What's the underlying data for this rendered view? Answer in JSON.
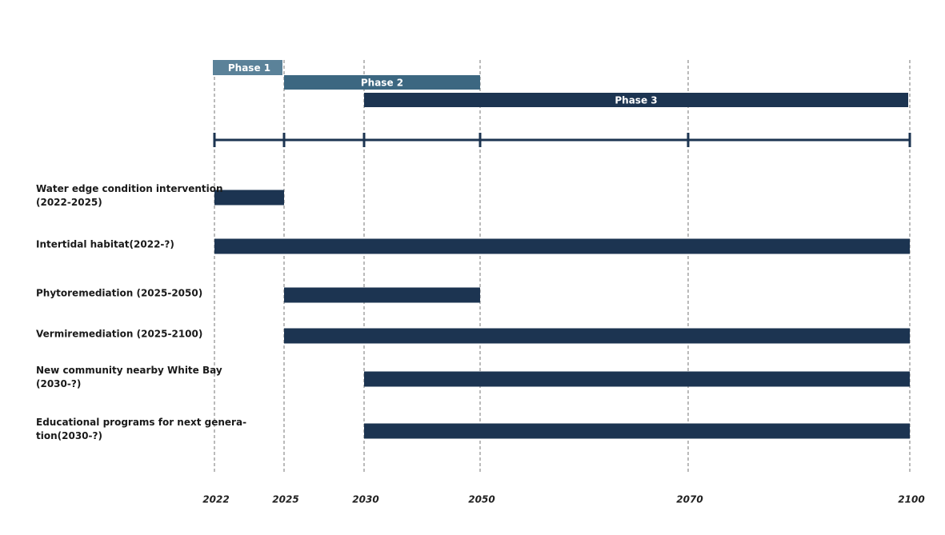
{
  "chart_data": {
    "type": "gantt",
    "phases": [
      {
        "name": "Phase 1",
        "start": 2022,
        "end": 2025,
        "color": "#5b8299"
      },
      {
        "name": "Phase 2",
        "start": 2025,
        "end": 2050,
        "color": "#3c6781"
      },
      {
        "name": "Phase 3",
        "start": 2030,
        "end": 2100,
        "color": "#1c3451"
      }
    ],
    "tasks": [
      {
        "label": [
          "Water edge condition intervention",
          "(2022-2025)"
        ],
        "start": 2022,
        "end": 2025
      },
      {
        "label": [
          "Intertidal habitat(2022-?)"
        ],
        "start": 2022,
        "end": null
      },
      {
        "label": [
          "Phytoremediation (2025-2050)"
        ],
        "start": 2025,
        "end": 2050
      },
      {
        "label": [
          "Vermiremediation (2025-2100)"
        ],
        "start": 2025,
        "end": 2100
      },
      {
        "label": [
          "New community nearby White Bay",
          "(2030-?)"
        ],
        "start": 2030,
        "end": null
      },
      {
        "label": [
          "Educational programs for next genera-",
          "tion(2030-?)"
        ],
        "start": 2030,
        "end": null
      }
    ],
    "color": "#1c3451",
    "xlim": [
      2022,
      2100
    ],
    "xticks": [
      2022,
      2025,
      2030,
      2050,
      2070,
      2100
    ]
  }
}
